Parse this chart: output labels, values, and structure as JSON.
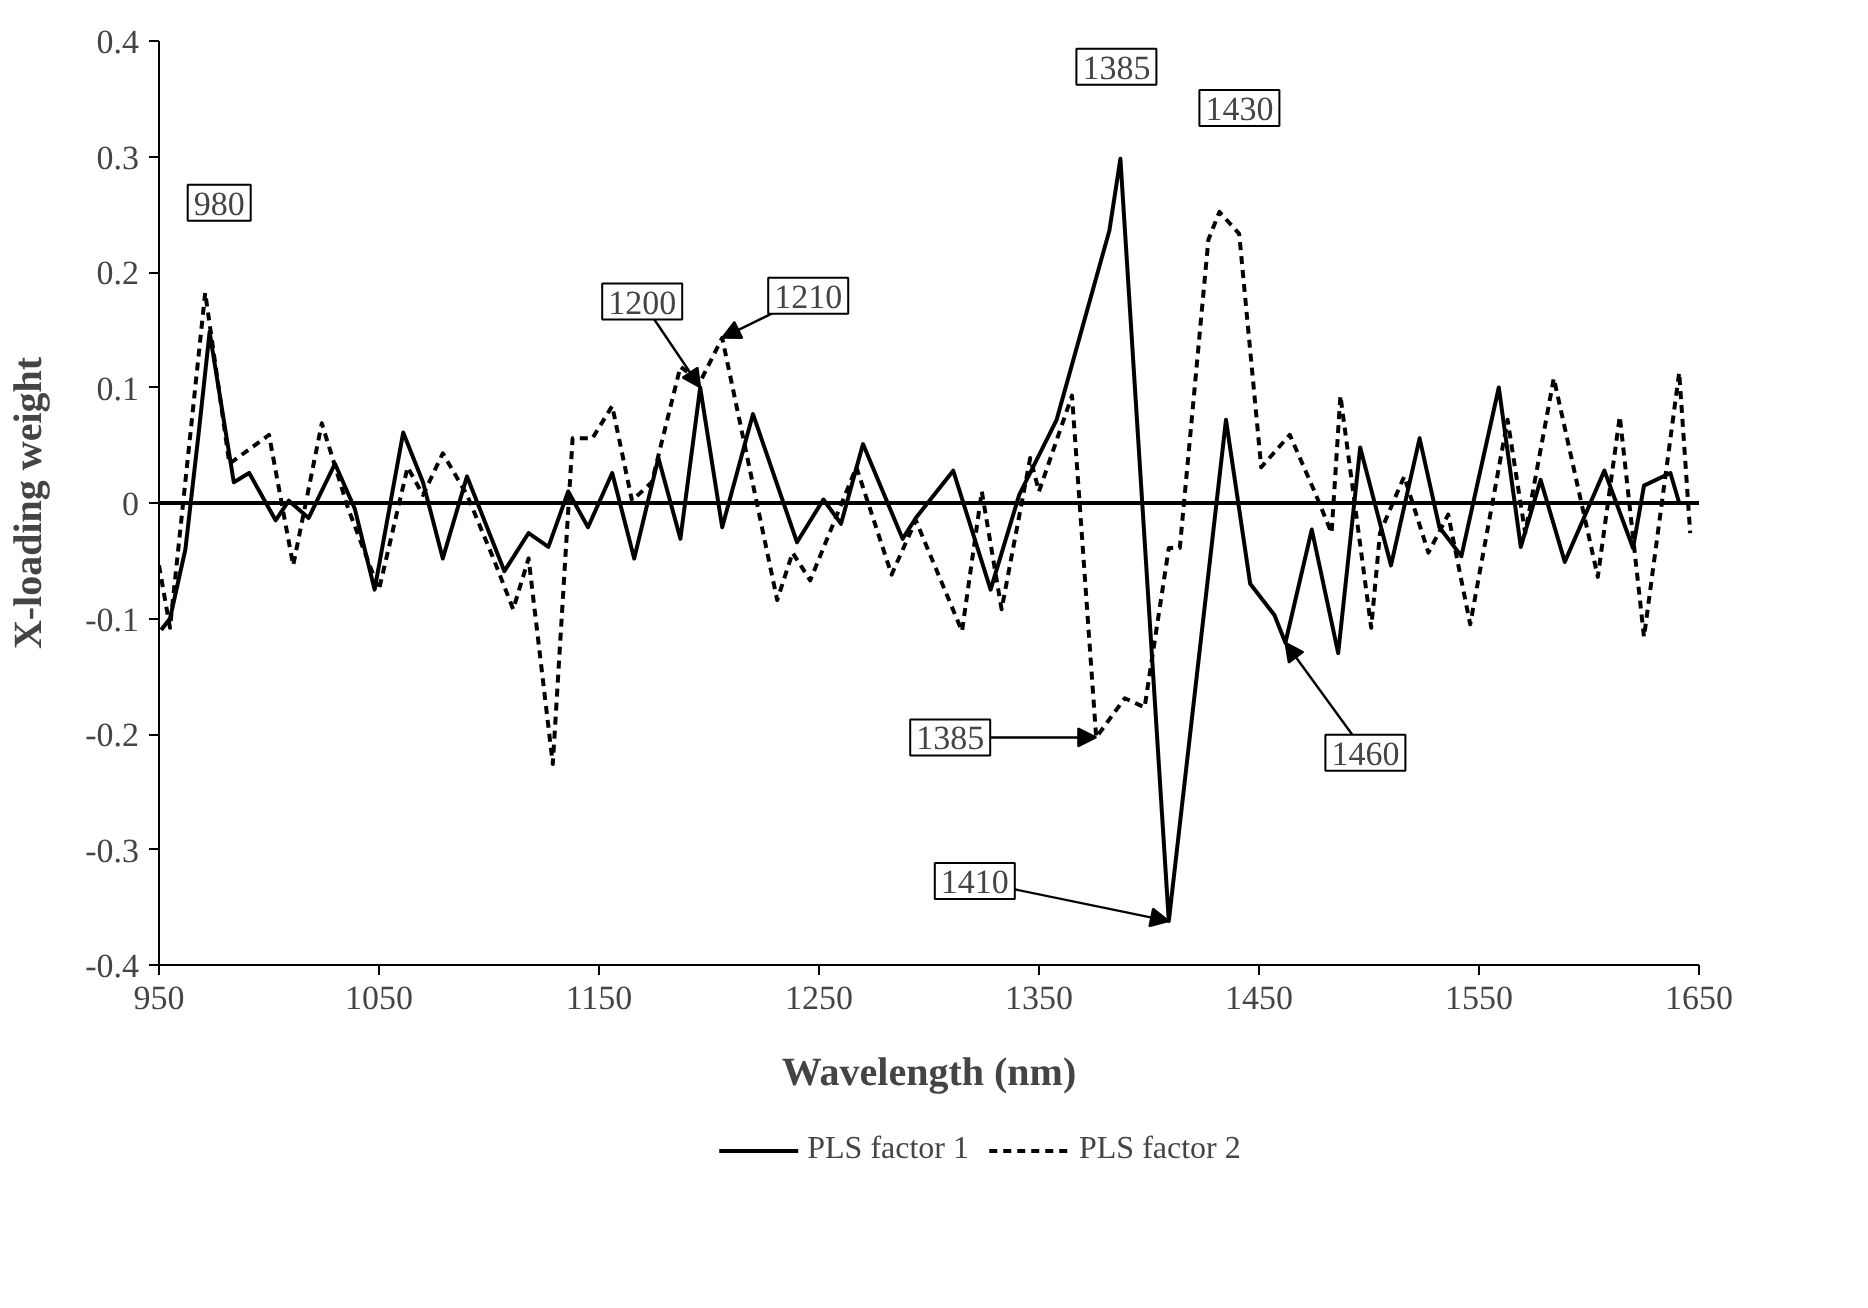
{
  "chart_data": {
    "type": "line",
    "xlabel": "Wavelength (nm)",
    "ylabel": "X-loading weight",
    "xlim": [
      950,
      1650
    ],
    "xticks": [
      950,
      1050,
      1150,
      1250,
      1350,
      1450,
      1550,
      1650
    ],
    "ylim": [
      -0.4,
      0.4
    ],
    "yticks": [
      -0.4,
      -0.3,
      -0.2,
      -0.1,
      0,
      0.1,
      0.2,
      0.3,
      0.4
    ],
    "grid": false,
    "legend": "bottom",
    "ref_lines": [
      {
        "axis": "y",
        "value": 0,
        "color": "#000000"
      }
    ],
    "series": [
      {
        "name": "PLS factor 1",
        "color": "#000000",
        "line_style": "solid",
        "x": [
          951,
          955,
          962,
          968,
          973,
          984,
          991,
          1003,
          1009,
          1018,
          1030,
          1039,
          1048,
          1061,
          1070,
          1079,
          1090,
          1107,
          1118,
          1127,
          1136,
          1145,
          1156,
          1166,
          1177,
          1187,
          1196,
          1206,
          1220,
          1240,
          1252,
          1260,
          1270,
          1288,
          1294,
          1311,
          1328,
          1341,
          1358,
          1382,
          1387,
          1397,
          1409,
          1435,
          1446,
          1457,
          1462,
          1474,
          1486,
          1496,
          1510,
          1523,
          1532,
          1542,
          1559,
          1569,
          1578,
          1589,
          1607,
          1620,
          1625,
          1637,
          1641
        ],
        "values": [
          -0.11,
          -0.1,
          -0.04,
          0.06,
          0.148,
          0.018,
          0.026,
          -0.015,
          0.002,
          -0.013,
          0.034,
          -0.005,
          -0.075,
          0.061,
          0.018,
          -0.048,
          0.023,
          -0.059,
          -0.026,
          -0.038,
          0.01,
          -0.021,
          0.026,
          -0.048,
          0.039,
          -0.031,
          0.1,
          -0.021,
          0.077,
          -0.034,
          0.003,
          -0.018,
          0.051,
          -0.031,
          -0.013,
          0.028,
          -0.075,
          0.007,
          0.072,
          0.236,
          0.298,
          -0.002,
          -0.362,
          0.072,
          -0.07,
          -0.097,
          -0.121,
          -0.023,
          -0.13,
          0.048,
          -0.054,
          0.056,
          -0.021,
          -0.046,
          0.1,
          -0.038,
          0.02,
          -0.051,
          0.028,
          -0.039,
          0.015,
          0.026,
          0
        ]
      },
      {
        "name": "PLS factor 2",
        "color": "#000000",
        "line_style": "dashed",
        "x": [
          950,
          955,
          971,
          982,
          1000,
          1011,
          1024,
          1036,
          1050,
          1063,
          1070,
          1079,
          1090,
          1102,
          1111,
          1118,
          1129,
          1138,
          1147,
          1156,
          1165,
          1174,
          1187,
          1196,
          1206,
          1231,
          1238,
          1246,
          1267,
          1283,
          1294,
          1315,
          1324,
          1333,
          1346,
          1350,
          1365,
          1376,
          1389,
          1398,
          1409,
          1414,
          1427,
          1432,
          1441,
          1451,
          1464,
          1475,
          1483,
          1487,
          1501,
          1505,
          1516,
          1527,
          1536,
          1546,
          1563,
          1571,
          1584,
          1604,
          1614,
          1625,
          1641,
          1646
        ],
        "values": [
          -0.054,
          -0.108,
          0.182,
          0.034,
          0.059,
          -0.054,
          0.069,
          -0.005,
          -0.075,
          0.031,
          0.007,
          0.043,
          0.007,
          -0.048,
          -0.092,
          -0.048,
          -0.226,
          0.056,
          0.056,
          0.084,
          0.002,
          0.018,
          0.118,
          0.105,
          0.143,
          -0.084,
          -0.043,
          -0.067,
          0.031,
          -0.062,
          -0.015,
          -0.111,
          0.01,
          -0.092,
          0.039,
          0.01,
          0.093,
          -0.203,
          -0.169,
          -0.177,
          -0.039,
          -0.039,
          0.228,
          0.252,
          0.233,
          0.031,
          0.059,
          0.011,
          -0.026,
          0.093,
          -0.108,
          -0.026,
          0.023,
          -0.043,
          -0.01,
          -0.105,
          0.072,
          -0.026,
          0.108,
          -0.064,
          0.075,
          -0.116,
          0.113,
          -0.026
        ]
      }
    ],
    "annotations": [
      {
        "text": "980",
        "x": 971,
        "y": 0.182
      },
      {
        "text": "1200",
        "x": 1196,
        "y": 0.1
      },
      {
        "text": "1210",
        "x": 1206,
        "y": 0.143
      },
      {
        "text": "1385",
        "x": 1387,
        "y": 0.298
      },
      {
        "text": "1430",
        "x": 1432,
        "y": 0.252
      },
      {
        "text": "1385",
        "x": 1376,
        "y": -0.203
      },
      {
        "text": "1410",
        "x": 1409,
        "y": -0.362
      },
      {
        "text": "1460",
        "x": 1462,
        "y": -0.121
      }
    ]
  }
}
